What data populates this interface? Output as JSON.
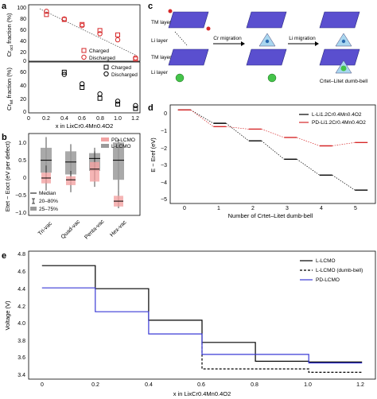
{
  "panel_labels": {
    "a": "a",
    "b": "b",
    "c": "c",
    "d": "d",
    "e": "e"
  },
  "panel_a": {
    "top_ylabel_main": "Cr",
    "top_ylabel_sub": "oct",
    "top_ylabel_rest": " fraction (%)",
    "bottom_ylabel_main": "Cr",
    "bottom_ylabel_sub": "tet",
    "bottom_ylabel_rest": " fraction (%)",
    "xlabel": "x in LixCr0.4Mn0.4O2",
    "top_yticks": [
      "100",
      "80",
      "60",
      "40",
      "20",
      "0"
    ],
    "bottom_yticks": [
      "60",
      "40",
      "20",
      "0"
    ],
    "xticks": [
      "0",
      "0.2",
      "0.4",
      "0.6",
      "0.8",
      "1.0",
      "1.2"
    ],
    "legend": [
      "Charged",
      "Discharged"
    ]
  },
  "panel_b": {
    "ylabel": "Etet − Eoct (eV per defect)",
    "yticks": [
      "1.0",
      "0.5",
      "0",
      "−0.5",
      "−1.0"
    ],
    "categories": [
      "Tri-vac",
      "Quad-vac",
      "Penta-vac",
      "Hex-vac"
    ],
    "legend_series": [
      "PD-LCMO",
      "L-LCMO"
    ],
    "legend_stats": [
      "Median",
      "20–80%",
      "25–75%"
    ]
  },
  "panel_c": {
    "tm_layer": "TM layer",
    "li_layer": "Li layer",
    "tm_layer2": "TM layer",
    "li_layer2": "Li layer",
    "cr_migration": "Cr migration",
    "li_migration": "Li migration",
    "dumbbell": "Crtet–Litet dumb-bell"
  },
  "panel_d": {
    "ylabel": "E − Eref (eV)",
    "xlabel": "Number of Crtet–Litet dumb-bell",
    "yticks": [
      "0",
      "−1",
      "−2",
      "−3",
      "−4",
      "−5"
    ],
    "xticks": [
      "0",
      "1",
      "2",
      "3",
      "4",
      "5"
    ],
    "legend": [
      "L-Li1.2Cr0.4Mn0.4O2",
      "PD-Li1.2Cr0.4Mn0.4O2"
    ]
  },
  "panel_e": {
    "ylabel": "Voltage (V)",
    "xlabel": "x in LixCr0.4Mn0.4O2",
    "yticks": [
      "4.8",
      "4.6",
      "4.4",
      "4.2",
      "4.0",
      "3.8",
      "3.6",
      "3.4"
    ],
    "xticks": [
      "0",
      "0.2",
      "0.4",
      "0.6",
      "0.8",
      "1.0",
      "1.2"
    ],
    "legend": [
      "L-LCMO",
      "L-LCMO (dumb-bell)",
      "PD-LCMO"
    ]
  },
  "colors": {
    "red": "#d62728",
    "blue": "#3a3ad6",
    "gray": "#9a9a9a",
    "pink": "#f2a3a3",
    "black": "#000000"
  },
  "chart_data": [
    {
      "type": "scatter",
      "title": "",
      "xlabel": "x in LixCr0.4Mn0.4O2",
      "ylabel": "Cr oct fraction (%)",
      "xlim": [
        0,
        1.25
      ],
      "ylim": [
        0,
        100
      ],
      "series": [
        {
          "name": "Charged",
          "x": [
            0.2,
            0.4,
            0.6,
            0.8,
            1.0,
            1.2
          ],
          "y": [
            85,
            76,
            67,
            56,
            48,
            4
          ]
        },
        {
          "name": "Discharged",
          "x": [
            0.2,
            0.4,
            0.6,
            0.8,
            1.0,
            1.2
          ],
          "y": [
            91,
            77,
            65,
            50,
            39,
            6
          ]
        }
      ]
    },
    {
      "type": "scatter",
      "xlabel": "x in LixCr0.4Mn0.4O2",
      "ylabel": "Cr tet fraction (%)",
      "xlim": [
        0,
        1.25
      ],
      "ylim": [
        0,
        70
      ],
      "series": [
        {
          "name": "Charged",
          "x": [
            0.4,
            0.6,
            0.8,
            1.0,
            1.2
          ],
          "y": [
            56,
            35,
            20,
            12,
            6
          ]
        },
        {
          "name": "Discharged",
          "x": [
            0.4,
            0.6,
            0.8,
            1.0,
            1.2
          ],
          "y": [
            53,
            40,
            26,
            16,
            10
          ]
        }
      ]
    },
    {
      "type": "box",
      "ylabel": "Etet − Eoct (eV per defect)",
      "ylim": [
        -1.2,
        1.1
      ],
      "categories": [
        "Tri-vac",
        "Quad-vac",
        "Penta-vac",
        "Hex-vac"
      ],
      "series": [
        {
          "name": "L-LCMO",
          "whisker_low": [
            -0.3,
            -0.2,
            -0.2,
            -0.5
          ],
          "q1": [
            0.0,
            -0.05,
            0.05,
            -0.2
          ],
          "median": [
            0.35,
            0.3,
            0.4,
            0.35
          ],
          "q3": [
            0.7,
            0.6,
            0.55,
            0.85
          ],
          "whisker_high": [
            1.0,
            0.8,
            0.7,
            0.95
          ]
        },
        {
          "name": "PD-LCMO",
          "whisker_low": [
            -0.5,
            -0.55,
            -0.4,
            -1.0
          ],
          "q1": [
            -0.3,
            -0.35,
            -0.25,
            -0.95
          ],
          "median": [
            -0.15,
            -0.2,
            0.1,
            -0.8
          ],
          "q3": [
            0.0,
            -0.1,
            0.3,
            -0.65
          ],
          "whisker_high": [
            0.2,
            0.05,
            0.6,
            -0.5
          ]
        }
      ]
    },
    {
      "type": "line",
      "xlabel": "Number of Crtet–Litet dumb-bell",
      "ylabel": "E − Eref (eV)",
      "xlim": [
        -0.4,
        5.4
      ],
      "ylim": [
        -5.6,
        0.3
      ],
      "series": [
        {
          "name": "L-Li1.2Cr0.4Mn0.4O2",
          "x": [
            0,
            1,
            2,
            3,
            4,
            5
          ],
          "y": [
            0,
            -0.8,
            -1.85,
            -2.95,
            -3.9,
            -4.8
          ]
        },
        {
          "name": "PD-Li1.2Cr0.4Mn0.4O2",
          "x": [
            0,
            1,
            2,
            3,
            4,
            5
          ],
          "y": [
            0,
            -1.0,
            -1.15,
            -1.65,
            -2.15,
            -1.95
          ]
        }
      ]
    },
    {
      "type": "line",
      "xlabel": "x in LixCr0.4Mn0.4O2",
      "ylabel": "Voltage (V)",
      "xlim": [
        -0.05,
        1.25
      ],
      "ylim": [
        3.35,
        4.85
      ],
      "series": [
        {
          "name": "L-LCMO",
          "x": [
            0,
            0.2,
            0.2,
            0.4,
            0.4,
            0.6,
            0.6,
            0.8,
            0.8,
            1.0,
            1.0,
            1.2
          ],
          "y": [
            4.68,
            4.68,
            4.41,
            4.41,
            4.04,
            4.04,
            3.78,
            3.78,
            3.56,
            3.56,
            3.55,
            3.55
          ]
        },
        {
          "name": "L-LCMO (dumb-bell)",
          "x": [
            0.6,
            0.6,
            1.0,
            1.0,
            1.2
          ],
          "y": [
            3.78,
            3.47,
            3.47,
            3.43,
            3.43
          ]
        },
        {
          "name": "PD-LCMO",
          "x": [
            0,
            0.2,
            0.2,
            0.4,
            0.4,
            0.6,
            0.6,
            1.0,
            1.0,
            1.2
          ],
          "y": [
            4.42,
            4.42,
            4.14,
            4.14,
            3.88,
            3.88,
            3.64,
            3.64,
            3.54,
            3.54
          ]
        }
      ]
    }
  ]
}
